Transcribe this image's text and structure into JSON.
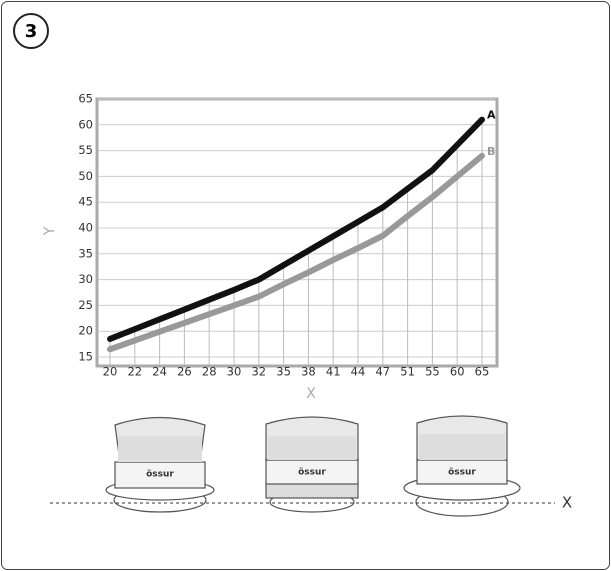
{
  "badge": "3",
  "chart_data": {
    "type": "line",
    "x_label": "X",
    "y_label": "Y",
    "categories": [
      "20",
      "22",
      "24",
      "26",
      "28",
      "30",
      "32",
      "35",
      "38",
      "41",
      "44",
      "47",
      "51",
      "55",
      "60",
      "65"
    ],
    "series": [
      {
        "name": "A",
        "color": "#111111",
        "values": [
          18.5,
          20.4,
          22.3,
          24.2,
          26.1,
          28,
          30,
          32.8,
          35.6,
          38.4,
          41.2,
          44,
          47.6,
          51.2,
          56.1,
          61
        ]
      },
      {
        "name": "B",
        "color": "#999999",
        "values": [
          16.5,
          18.2,
          19.9,
          21.6,
          23.3,
          25,
          26.7,
          29.1,
          31.4,
          33.8,
          36.1,
          38.5,
          42.3,
          46,
          50,
          54
        ]
      }
    ],
    "ylim": [
      15,
      65
    ],
    "yticks": [
      15,
      20,
      25,
      30,
      35,
      40,
      45,
      50,
      55,
      60,
      65
    ],
    "grid": true
  },
  "illustration": {
    "logos": [
      "össur",
      "össur",
      "össur"
    ],
    "baseline_label": "X"
  }
}
